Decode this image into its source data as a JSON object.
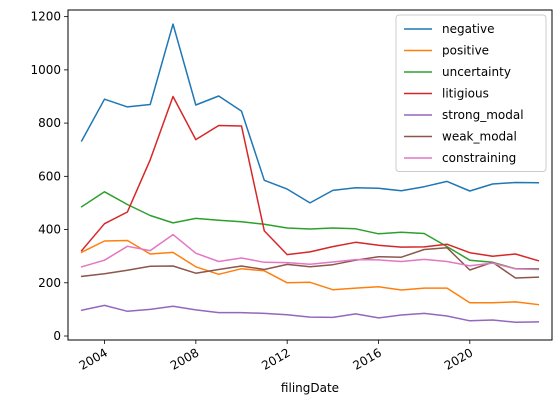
{
  "chart_data": {
    "type": "line",
    "xlabel": "filingDate",
    "ylabel": "",
    "title": "",
    "xlim": [
      2002.4,
      2023.6
    ],
    "ylim": [
      -15,
      1225
    ],
    "x_ticks": [
      2004,
      2008,
      2012,
      2016,
      2020
    ],
    "y_ticks": [
      0,
      200,
      400,
      600,
      800,
      1000,
      1200
    ],
    "legend_position": "top-right",
    "grid": false,
    "x": [
      2003,
      2004,
      2005,
      2006,
      2007,
      2008,
      2009,
      2010,
      2011,
      2012,
      2013,
      2014,
      2015,
      2016,
      2017,
      2018,
      2019,
      2020,
      2021,
      2022,
      2023
    ],
    "series": [
      {
        "name": "negative",
        "color": "#1f77b4",
        "values": [
          733,
          890,
          861,
          870,
          1172,
          868,
          902,
          845,
          585,
          552,
          500,
          547,
          557,
          555,
          546,
          561,
          581,
          545,
          571,
          577,
          576
        ]
      },
      {
        "name": "positive",
        "color": "#ff7f0e",
        "values": [
          315,
          357,
          359,
          308,
          314,
          260,
          232,
          253,
          245,
          200,
          202,
          174,
          180,
          185,
          173,
          180,
          180,
          125,
          125,
          128,
          118
        ]
      },
      {
        "name": "uncertainty",
        "color": "#2ca02c",
        "values": [
          486,
          542,
          494,
          453,
          425,
          442,
          435,
          429,
          420,
          406,
          402,
          406,
          403,
          384,
          390,
          385,
          336,
          285,
          277,
          253,
          253
        ]
      },
      {
        "name": "litigious",
        "color": "#d62728",
        "values": [
          321,
          422,
          466,
          662,
          900,
          738,
          791,
          789,
          395,
          306,
          316,
          336,
          352,
          341,
          334,
          335,
          345,
          313,
          300,
          308,
          283
        ]
      },
      {
        "name": "strong_modal",
        "color": "#9467bd",
        "values": [
          97,
          115,
          93,
          100,
          112,
          98,
          88,
          88,
          85,
          80,
          71,
          70,
          83,
          68,
          79,
          85,
          75,
          57,
          60,
          52,
          53
        ]
      },
      {
        "name": "weak_modal",
        "color": "#8c564b",
        "values": [
          224,
          234,
          247,
          262,
          263,
          236,
          250,
          263,
          250,
          269,
          260,
          268,
          285,
          298,
          296,
          325,
          332,
          248,
          277,
          218,
          221
        ]
      },
      {
        "name": "constraining",
        "color": "#e377c2",
        "values": [
          260,
          285,
          337,
          321,
          381,
          311,
          280,
          293,
          277,
          276,
          270,
          278,
          287,
          286,
          280,
          288,
          280,
          264,
          274,
          252,
          250
        ]
      }
    ]
  }
}
